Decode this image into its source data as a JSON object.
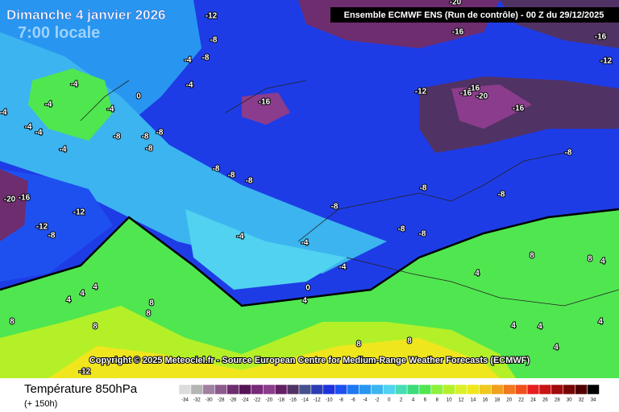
{
  "header": {
    "date": "Dimanche 4 janvier 2026",
    "time": "7:00 locale",
    "run": "Ensemble ECMWF ENS  (Run de contrôle)  - 00 Z du 29/12/2025"
  },
  "copyright": "Copyright © 2025 Meteociel.fr - Source European Centre for Medium-Range Weather Forecasts (ECMWF)",
  "footer": {
    "parameter": "Température 850hPa",
    "lead": "(+ 150h)"
  },
  "legend": {
    "ticks": [
      -34,
      -32,
      -30,
      -28,
      -26,
      -24,
      -22,
      -20,
      -18,
      -16,
      -14,
      -12,
      -10,
      -8,
      -6,
      -4,
      -2,
      0,
      2,
      4,
      6,
      8,
      10,
      12,
      14,
      16,
      18,
      20,
      22,
      24,
      26,
      28,
      30,
      32,
      34
    ],
    "colors": [
      "#dcdcdc",
      "#b4b4b4",
      "#a07fa0",
      "#8c5a8c",
      "#6e2d6e",
      "#551455",
      "#7a2878",
      "#8c3c8c",
      "#641e64",
      "#503264",
      "#46508c",
      "#2d3cb4",
      "#1e32dc",
      "#1e50f0",
      "#1e78f0",
      "#2896f0",
      "#3cb4f0",
      "#50d2f0",
      "#46dcb4",
      "#3cdc78",
      "#50e650",
      "#8cf03c",
      "#b4f028",
      "#dcf028",
      "#f0e61e",
      "#f0c81e",
      "#f0a01e",
      "#f0781e",
      "#f0501e",
      "#e61e1e",
      "#c81414",
      "#a00a0a",
      "#780505",
      "#500000",
      "#000000"
    ]
  },
  "map_labels": [
    -12,
    -8,
    -4,
    -8,
    -4,
    0,
    -4,
    -8,
    -8,
    -8,
    -8,
    -4,
    -4,
    -4,
    -4,
    -4,
    -4,
    -16,
    -12,
    -16,
    -20,
    -16,
    -16,
    -16,
    -16,
    -12,
    -20,
    -8,
    -8,
    -8,
    -8,
    -8,
    -8,
    -8,
    -8,
    -8,
    -20,
    -16,
    -12,
    -12,
    -8,
    -4,
    -4,
    -4,
    0,
    4,
    4,
    4,
    4,
    8,
    8,
    8,
    8,
    8,
    8,
    4,
    4,
    4,
    4,
    4,
    8,
    8,
    -12,
    4
  ]
}
